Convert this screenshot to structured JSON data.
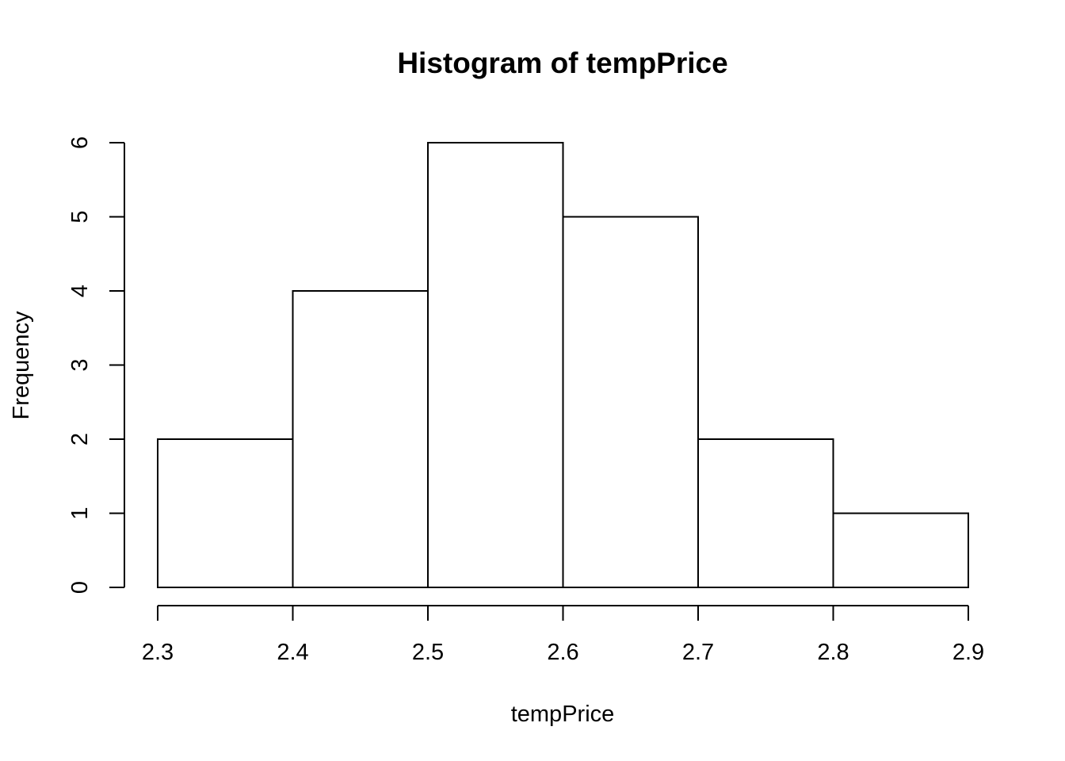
{
  "chart_data": {
    "type": "bar",
    "title": "Histogram of tempPrice",
    "xlabel": "tempPrice",
    "ylabel": "Frequency",
    "bins": [
      {
        "start": 2.3,
        "end": 2.4,
        "count": 2
      },
      {
        "start": 2.4,
        "end": 2.5,
        "count": 4
      },
      {
        "start": 2.5,
        "end": 2.6,
        "count": 6
      },
      {
        "start": 2.6,
        "end": 2.7,
        "count": 5
      },
      {
        "start": 2.7,
        "end": 2.8,
        "count": 2
      },
      {
        "start": 2.8,
        "end": 2.9,
        "count": 1
      }
    ],
    "xlim": [
      2.3,
      2.9
    ],
    "ylim": [
      0,
      6
    ],
    "x_ticks": [
      "2.3",
      "2.4",
      "2.5",
      "2.6",
      "2.7",
      "2.8",
      "2.9"
    ],
    "y_ticks": [
      "0",
      "1",
      "2",
      "3",
      "4",
      "5",
      "6"
    ],
    "grid": false,
    "legend": "none"
  }
}
